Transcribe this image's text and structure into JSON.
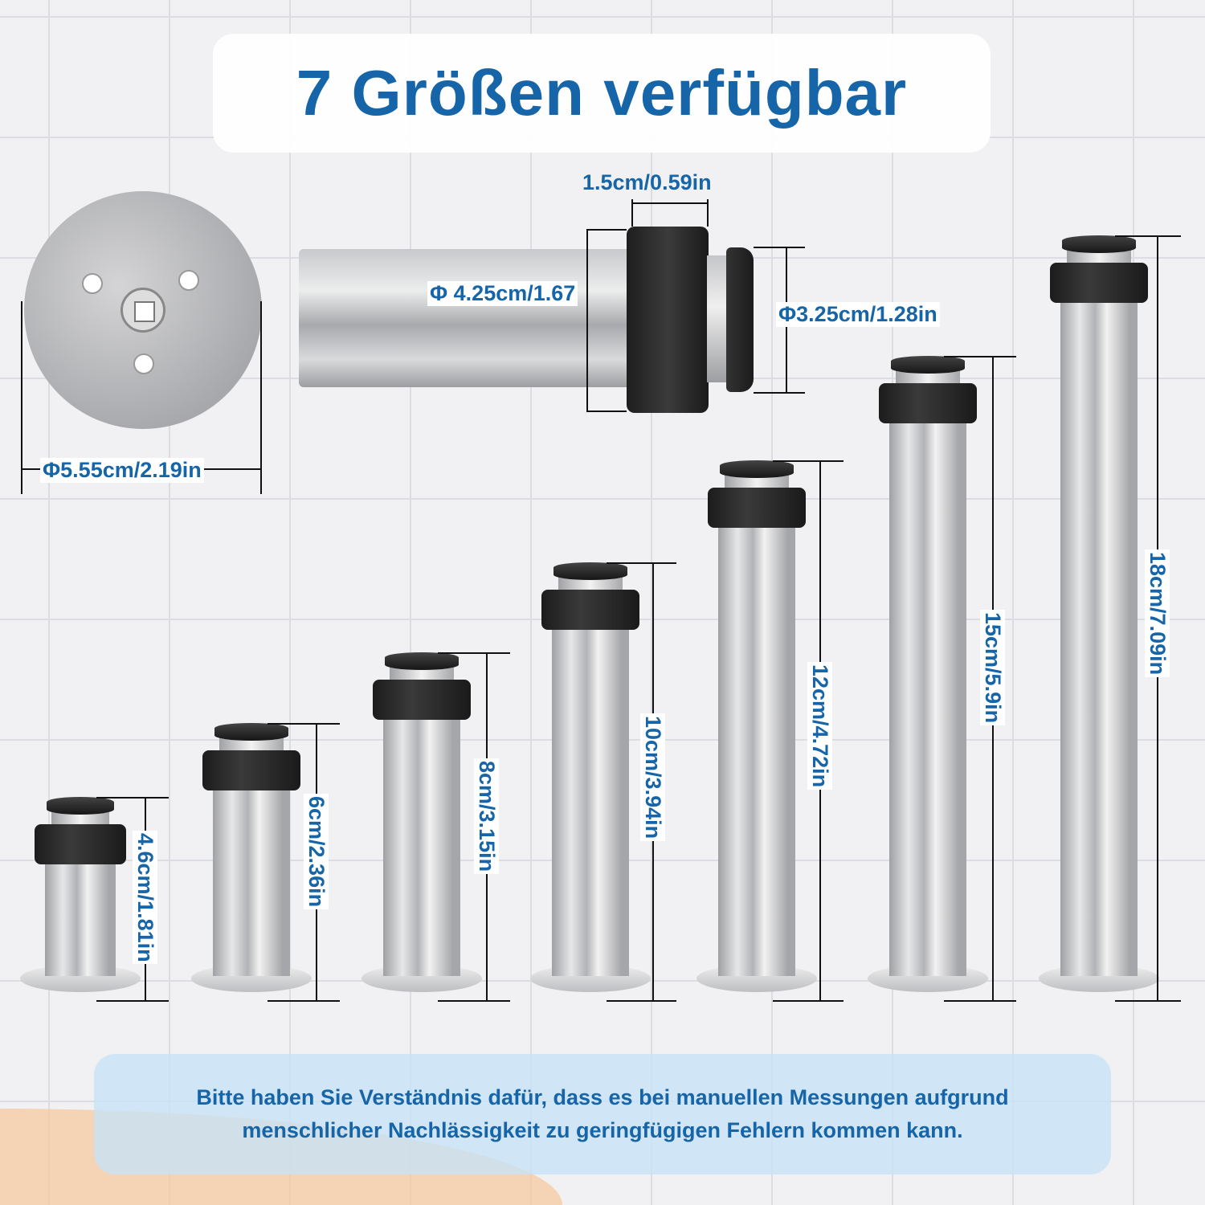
{
  "title": "7 Größen verfügbar",
  "dimensions": {
    "plate_diameter": "Φ5.55cm/2.19in",
    "band_width": "1.5cm/0.59in",
    "band_diameter": "Φ 4.25cm/1.67",
    "cap_diameter": "Φ3.25cm/1.28in"
  },
  "sizes": [
    {
      "label": "4.6cm/1.81in"
    },
    {
      "label": "6cm/2.36in"
    },
    {
      "label": "8cm/3.15in"
    },
    {
      "label": "10cm/3.94in"
    },
    {
      "label": "12cm/4.72in"
    },
    {
      "label": "15cm/5.9in"
    },
    {
      "label": "18cm/7.09in"
    }
  ],
  "note": {
    "line1": "Bitte haben Sie Verständnis dafür, dass es bei manuellen Messungen aufgrund",
    "line2": "menschlicher Nachlässigkeit zu geringfügigen Fehlern kommen kann."
  },
  "colors": {
    "accent": "#1565a8"
  }
}
